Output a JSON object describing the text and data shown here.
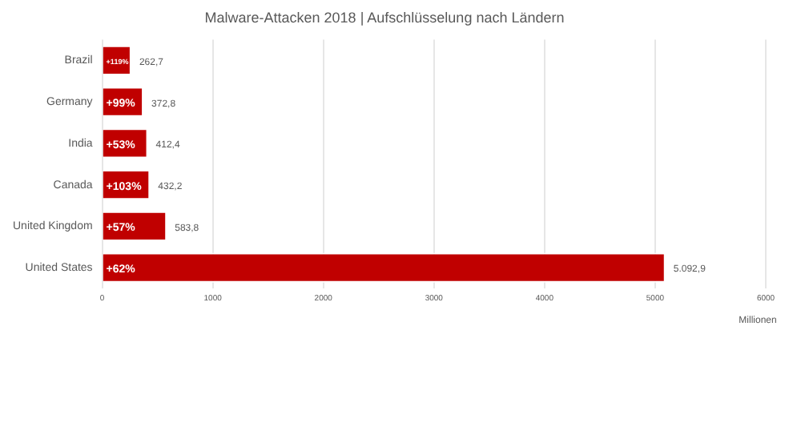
{
  "chart_data": {
    "type": "bar",
    "orientation": "horizontal",
    "title": "Malware-Attacken 2018 | Aufschlüsselung nach Ländern",
    "xlabel": "Millionen",
    "categories": [
      "Brazil",
      "Germany",
      "India",
      "Canada",
      "United Kingdom",
      "United States"
    ],
    "values": [
      262.7,
      372.8,
      412.4,
      432.2,
      583.8,
      5092.9
    ],
    "value_labels": [
      "262,7",
      "372,8",
      "412,4",
      "432,2",
      "583,8",
      "5.092,9"
    ],
    "color": "#c00000",
    "xlim": [
      0,
      6000
    ],
    "xticks": [
      0,
      1000,
      2000,
      3000,
      4000,
      5000,
      6000
    ],
    "grid": "x",
    "annotations": [
      "+119%",
      "+99%",
      "+53%",
      "+103%",
      "+57%",
      "+62%"
    ]
  }
}
